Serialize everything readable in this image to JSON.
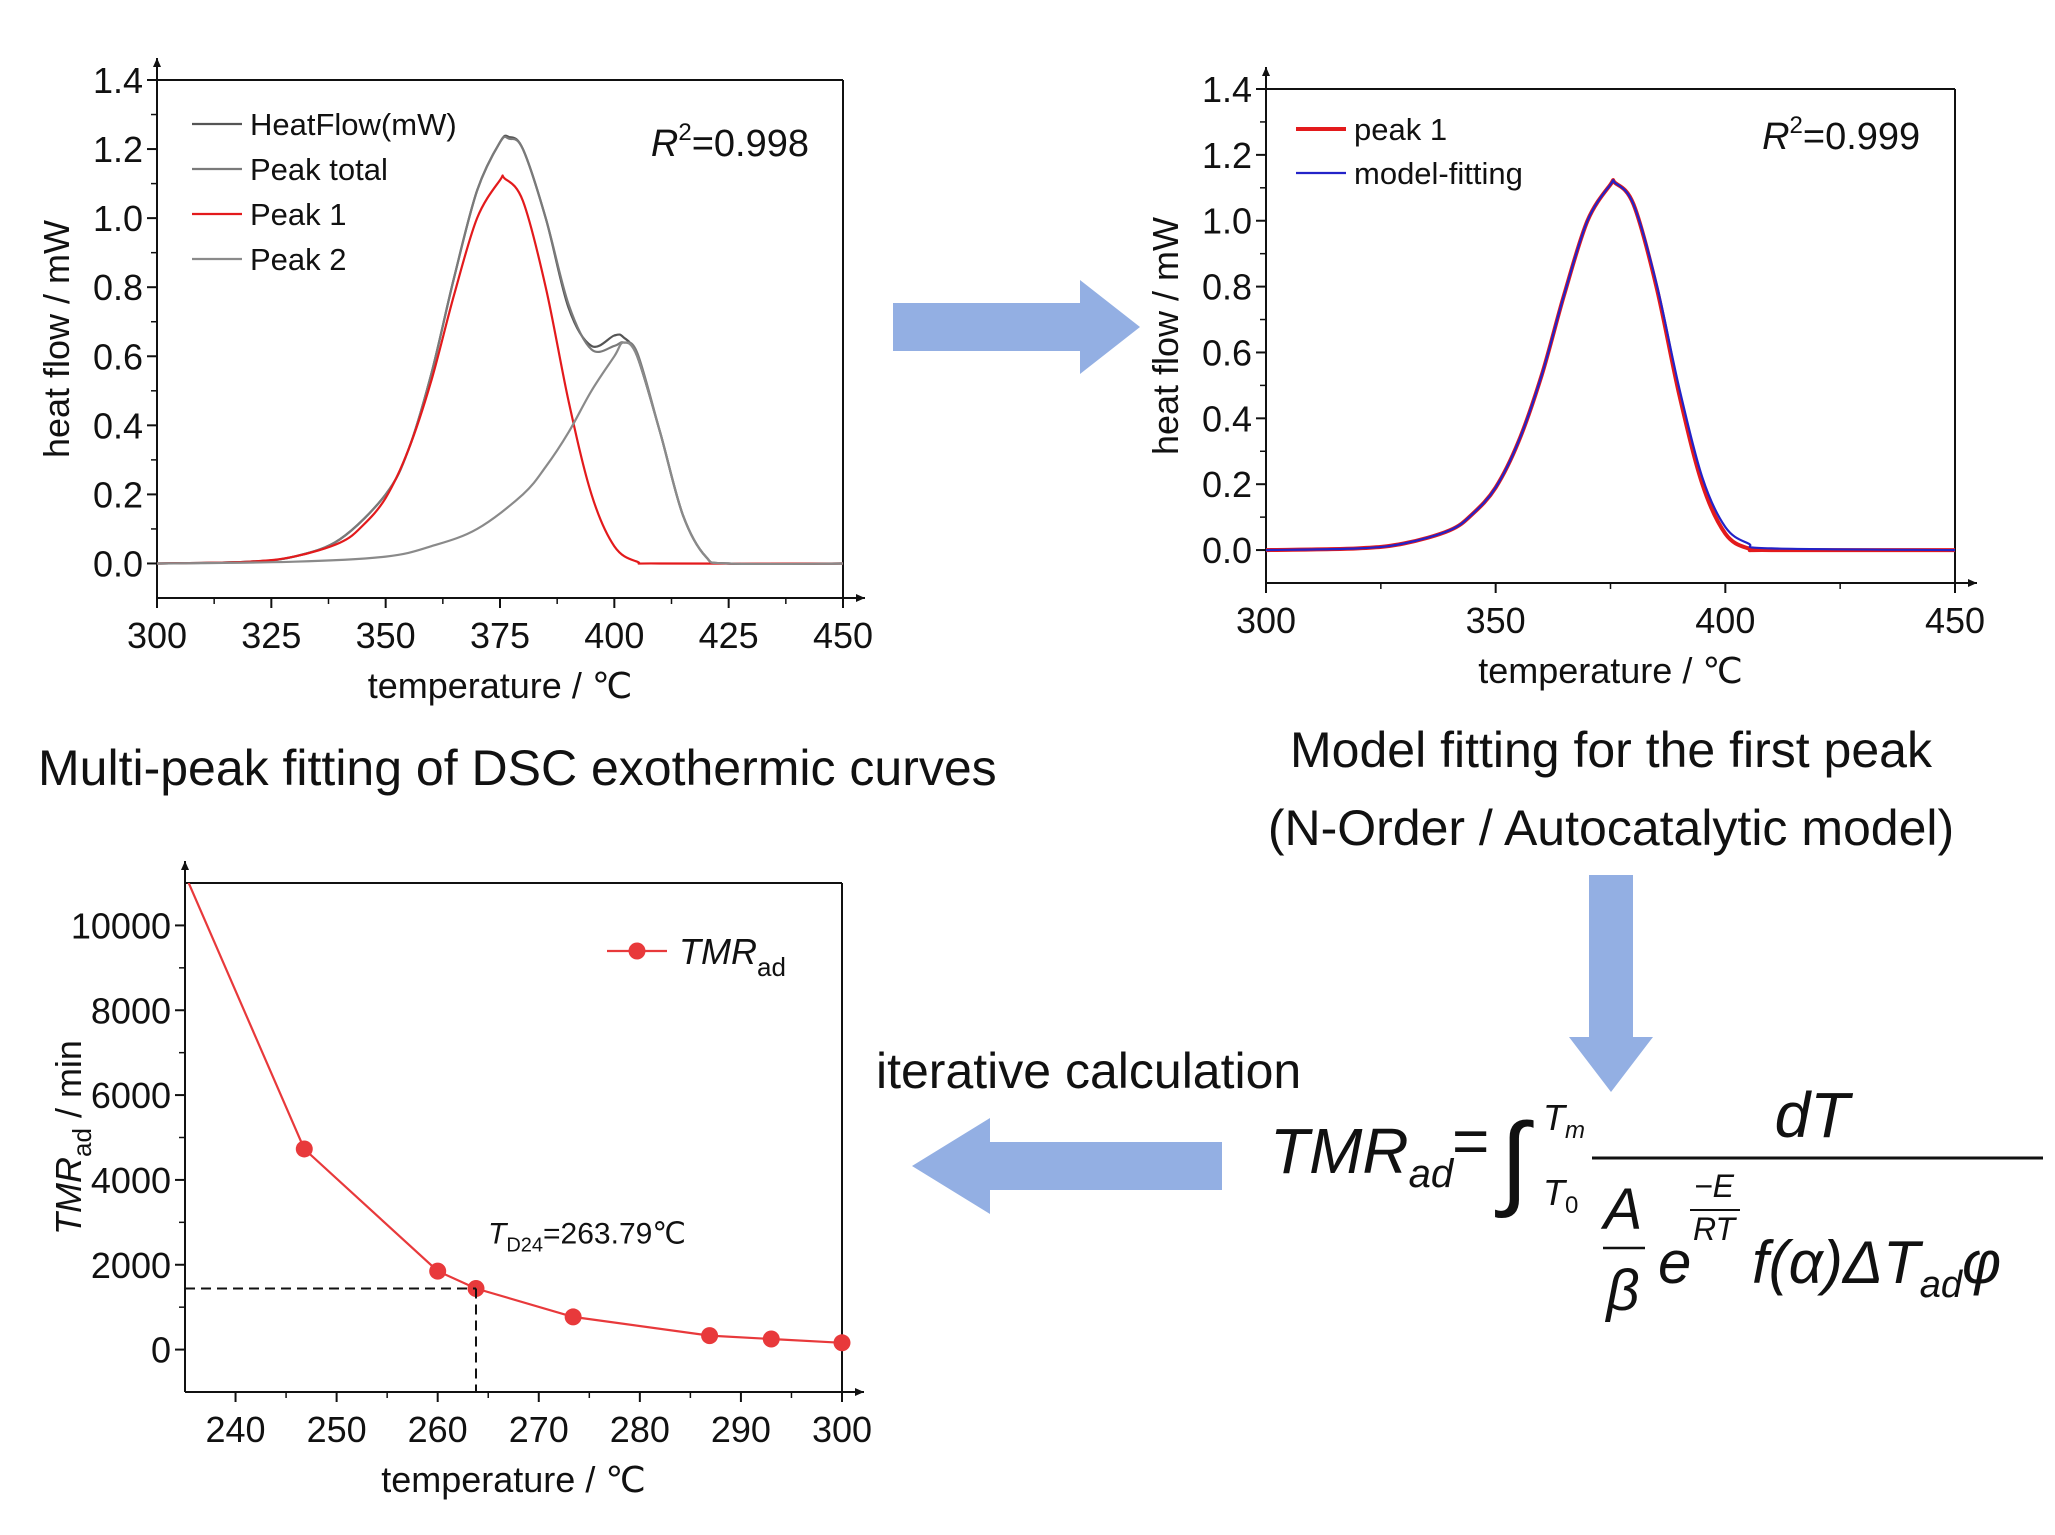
{
  "flow": {
    "caption_top_left": "Multi-peak fitting of DSC exothermic curves",
    "caption_top_right_1": "Model fitting for the first peak",
    "caption_top_right_2": "(N-Order / Autocatalytic model)",
    "caption_middle": "iterative calculation",
    "arrow_color": "#93afe3"
  },
  "formula": {
    "lhs_main": "TMR",
    "lhs_sub": "ad",
    "equals": "=",
    "integral": "∫",
    "upper_limit_main": "T",
    "upper_limit_sub": "m",
    "lower_limit_main": "T",
    "lower_limit_sub": "0",
    "numerator": "dT",
    "den_A": "A",
    "den_beta": "β",
    "den_e": "e",
    "exp_num": "−E",
    "exp_den": "RT",
    "den_f": "f(α)ΔT",
    "den_sub": "ad",
    "den_phi": "φ"
  },
  "chart_data": [
    {
      "type": "line",
      "title": "",
      "xlabel": "temperature / ℃",
      "ylabel": "heat flow / mW",
      "xlim": [
        300,
        450
      ],
      "ylim": [
        -0.1,
        1.4
      ],
      "xticks": [
        300,
        325,
        350,
        375,
        400,
        425,
        450
      ],
      "yticks": [
        0.0,
        0.2,
        0.4,
        0.6,
        0.8,
        1.0,
        1.2,
        1.4
      ],
      "annotation": {
        "main": "R",
        "sup": "2",
        "rest": "=0.998"
      },
      "legend_position": "top-left",
      "series": [
        {
          "name": "HeatFlow(mW)",
          "color": "#555555",
          "x": [
            300,
            320,
            330,
            340,
            350,
            355,
            360,
            365,
            370,
            375,
            377,
            380,
            385,
            390,
            395,
            400,
            402,
            405,
            410,
            415,
            420,
            425,
            450
          ],
          "y": [
            0,
            0.005,
            0.02,
            0.07,
            0.2,
            0.33,
            0.55,
            0.83,
            1.08,
            1.22,
            1.235,
            1.2,
            1.0,
            0.74,
            0.63,
            0.66,
            0.655,
            0.6,
            0.38,
            0.14,
            0.02,
            0,
            0
          ]
        },
        {
          "name": "Peak total",
          "color": "#7a7a7a",
          "x": [
            300,
            320,
            330,
            340,
            350,
            355,
            360,
            365,
            370,
            375,
            377,
            380,
            385,
            390,
            395,
            400,
            402,
            405,
            410,
            415,
            420,
            425,
            450
          ],
          "y": [
            0,
            0.005,
            0.02,
            0.07,
            0.2,
            0.33,
            0.55,
            0.83,
            1.08,
            1.22,
            1.23,
            1.2,
            1.0,
            0.75,
            0.62,
            0.63,
            0.64,
            0.61,
            0.38,
            0.14,
            0.02,
            0,
            0
          ]
        },
        {
          "name": "Peak 1",
          "color": "#e31a1c",
          "x": [
            300,
            320,
            330,
            340,
            345,
            350,
            355,
            360,
            365,
            370,
            375,
            376,
            380,
            385,
            390,
            395,
            400,
            405,
            410,
            450
          ],
          "y": [
            0,
            0.005,
            0.02,
            0.06,
            0.11,
            0.19,
            0.33,
            0.53,
            0.78,
            1.0,
            1.11,
            1.115,
            1.05,
            0.8,
            0.47,
            0.2,
            0.05,
            0.005,
            0,
            0
          ]
        },
        {
          "name": "Peak 2",
          "color": "#8a8a8a",
          "x": [
            300,
            330,
            350,
            360,
            370,
            380,
            385,
            390,
            395,
            400,
            402,
            405,
            410,
            415,
            420,
            425,
            450
          ],
          "y": [
            0,
            0.005,
            0.02,
            0.05,
            0.1,
            0.2,
            0.28,
            0.38,
            0.5,
            0.6,
            0.64,
            0.6,
            0.38,
            0.14,
            0.02,
            0,
            0
          ]
        }
      ]
    },
    {
      "type": "line",
      "title": "",
      "xlabel": "temperature / ℃",
      "ylabel": "heat flow / mW",
      "xlim": [
        300,
        450
      ],
      "ylim": [
        -0.1,
        1.4
      ],
      "xticks": [
        300,
        350,
        400,
        450
      ],
      "yticks": [
        0.0,
        0.2,
        0.4,
        0.6,
        0.8,
        1.0,
        1.2,
        1.4
      ],
      "annotation": {
        "main": "R",
        "sup": "2",
        "rest": "=0.999"
      },
      "legend_position": "top-left",
      "series": [
        {
          "name": "peak 1",
          "color": "#e31a1c",
          "x": [
            300,
            320,
            330,
            340,
            345,
            350,
            355,
            360,
            365,
            370,
            375,
            376,
            380,
            385,
            390,
            395,
            400,
            405,
            410,
            450
          ],
          "y": [
            0,
            0.005,
            0.02,
            0.06,
            0.11,
            0.19,
            0.33,
            0.53,
            0.78,
            1.0,
            1.11,
            1.115,
            1.05,
            0.8,
            0.47,
            0.2,
            0.05,
            0.005,
            0,
            0
          ]
        },
        {
          "name": "model-fitting",
          "color": "#2323c8",
          "x": [
            300,
            320,
            330,
            340,
            345,
            350,
            355,
            360,
            365,
            370,
            375,
            376,
            380,
            385,
            390,
            395,
            400,
            405,
            410,
            450
          ],
          "y": [
            0,
            0.005,
            0.02,
            0.06,
            0.11,
            0.19,
            0.33,
            0.53,
            0.78,
            1.0,
            1.11,
            1.115,
            1.05,
            0.81,
            0.49,
            0.22,
            0.07,
            0.02,
            0.005,
            0
          ]
        }
      ]
    },
    {
      "type": "line",
      "title": "",
      "xlabel": "temperature / ℃",
      "ylabel": {
        "main": "TMR",
        "sub": "ad",
        "rest": " / min"
      },
      "xlim": [
        235,
        300
      ],
      "ylim": [
        -1000,
        11000
      ],
      "xticks": [
        240,
        250,
        260,
        270,
        280,
        290,
        300
      ],
      "yticks": [
        0,
        2000,
        4000,
        6000,
        8000,
        10000
      ],
      "legend_position": "top-right",
      "annotation": {
        "main": "T",
        "sub": "D24",
        "rest": "=263.79℃",
        "x": 263.79,
        "y": 1440
      },
      "series": [
        {
          "name": "TMR",
          "name_sub": "ad",
          "color": "#e8393b",
          "x": [
            235,
            246.8,
            260,
            263.79,
            273.4,
            286.9,
            293,
            300
          ],
          "y": [
            11200,
            4730,
            1850,
            1440,
            770,
            330,
            250,
            160
          ],
          "markers": [
            false,
            true,
            true,
            true,
            true,
            true,
            true,
            true
          ]
        }
      ]
    }
  ]
}
